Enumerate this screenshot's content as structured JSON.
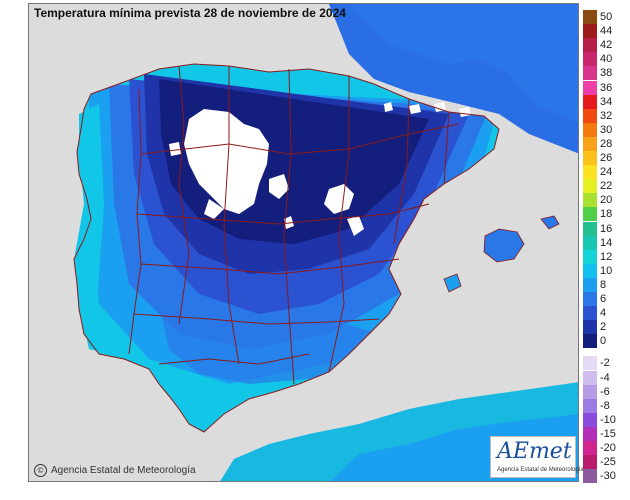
{
  "title": "Temperatura mínima prevista 28 de noviembre de 2024",
  "footer": {
    "copyright_symbol": "©",
    "credit": "Agencia Estatal de Meteorología"
  },
  "logo": {
    "main": "AEmet",
    "sub": "Agencia Estatal de Meteorología"
  },
  "legend": {
    "positive": [
      {
        "label": "50",
        "color": "#8a4a10"
      },
      {
        "label": "44",
        "color": "#9e1b1b"
      },
      {
        "label": "42",
        "color": "#b52048"
      },
      {
        "label": "40",
        "color": "#c8276e"
      },
      {
        "label": "38",
        "color": "#d8358c"
      },
      {
        "label": "36",
        "color": "#ee3fa8"
      },
      {
        "label": "34",
        "color": "#e61a1a"
      },
      {
        "label": "32",
        "color": "#f04a10"
      },
      {
        "label": "30",
        "color": "#f57a10"
      },
      {
        "label": "28",
        "color": "#f9a218"
      },
      {
        "label": "26",
        "color": "#fbc21c"
      },
      {
        "label": "24",
        "color": "#fde223"
      },
      {
        "label": "22",
        "color": "#e5f024"
      },
      {
        "label": "20",
        "color": "#a8e22e"
      },
      {
        "label": "18",
        "color": "#50d048"
      },
      {
        "label": "16",
        "color": "#25c090"
      },
      {
        "label": "14",
        "color": "#18c6b4"
      },
      {
        "label": "12",
        "color": "#14d4d8"
      },
      {
        "label": "10",
        "color": "#10c0ee"
      },
      {
        "label": "8",
        "color": "#1b9ff0"
      },
      {
        "label": "6",
        "color": "#2a78e8"
      },
      {
        "label": "4",
        "color": "#2b52d0"
      },
      {
        "label": "2",
        "color": "#1e34a8"
      },
      {
        "label": "0",
        "color": "#141e7c"
      }
    ],
    "negative": [
      {
        "label": "-2",
        "color": "#e4daf4"
      },
      {
        "label": "-4",
        "color": "#cfbdf0"
      },
      {
        "label": "-6",
        "color": "#b79ce8"
      },
      {
        "label": "-8",
        "color": "#9c7be2"
      },
      {
        "label": "-10",
        "color": "#8a4cdc"
      },
      {
        "label": "-15",
        "color": "#b42fb8"
      },
      {
        "label": "-20",
        "color": "#d02490"
      },
      {
        "label": "-25",
        "color": "#b81a6c"
      },
      {
        "label": "-30",
        "color": "#8a5aa0"
      }
    ]
  },
  "colors": {
    "sea": "#dcdcdc",
    "land_outside": "#dcdcdc",
    "borders": "#8b1a1a",
    "zero_below": "#ffffff"
  }
}
